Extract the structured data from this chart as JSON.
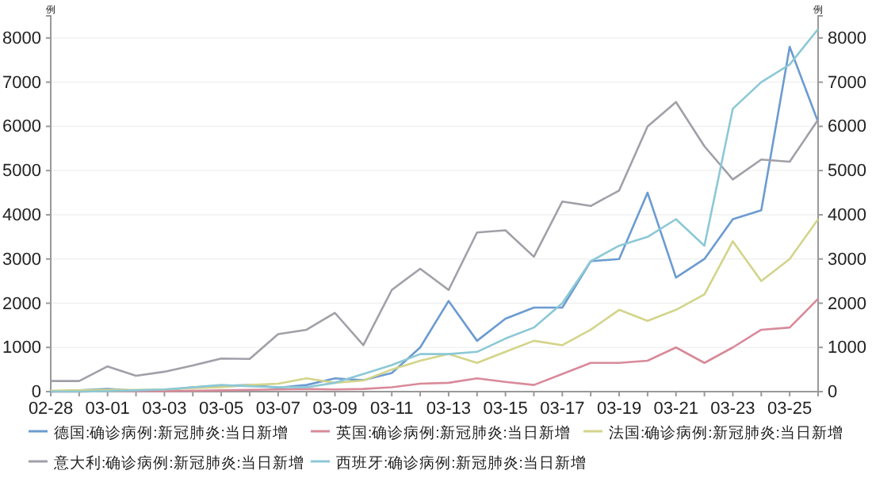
{
  "chart_data": {
    "type": "line",
    "categories": [
      "02-28",
      null,
      "03-01",
      null,
      "03-03",
      null,
      "03-05",
      null,
      "03-07",
      null,
      "03-09",
      null,
      "03-11",
      null,
      "03-13",
      null,
      "03-15",
      null,
      "03-17",
      null,
      "03-19",
      null,
      "03-21",
      null,
      "03-23",
      null,
      "03-25",
      null
    ],
    "ylabel": "例",
    "y2label": "例",
    "ylim": [
      0,
      8500
    ],
    "yticks": [
      0,
      1000,
      2000,
      3000,
      4000,
      5000,
      6000,
      7000,
      8000
    ],
    "y2lim": [
      0,
      8500
    ],
    "y2ticks": [
      0,
      1000,
      2000,
      3000,
      4000,
      5000,
      6000,
      7000,
      8000
    ],
    "grid": "y",
    "legend": "bottom",
    "marker": "none",
    "line_style": "solid",
    "series": [
      {
        "name": "德国:确诊病例:新冠肺炎:当日新增",
        "color": "#6b9bd1",
        "values": [
          0,
          30,
          60,
          20,
          30,
          100,
          130,
          150,
          90,
          150,
          300,
          260,
          420,
          1000,
          2050,
          1150,
          1650,
          1900,
          1900,
          2950,
          3000,
          4500,
          2580,
          3000,
          3900,
          4100,
          7800,
          6100
        ]
      },
      {
        "name": "英国:确诊病例:新冠肺炎:当日新增",
        "color": "#d88a9a",
        "values": [
          0,
          0,
          10,
          10,
          10,
          20,
          30,
          40,
          50,
          60,
          50,
          60,
          100,
          180,
          200,
          300,
          220,
          150,
          400,
          650,
          650,
          700,
          1000,
          650,
          1000,
          1400,
          1450,
          2100
        ]
      },
      {
        "name": "法国:确诊病例:新冠肺炎:当日新增",
        "color": "#d3d48a",
        "values": [
          20,
          30,
          40,
          40,
          50,
          80,
          100,
          150,
          180,
          300,
          200,
          250,
          500,
          700,
          850,
          650,
          900,
          1150,
          1050,
          1400,
          1850,
          1600,
          1850,
          2200,
          3400,
          2500,
          3000,
          3900
        ]
      },
      {
        "name": "意大利:确诊病例:新冠肺炎:当日新增",
        "color": "#a0a0a8",
        "values": [
          240,
          240,
          570,
          360,
          450,
          590,
          750,
          740,
          1300,
          1400,
          1780,
          1050,
          2300,
          2780,
          2300,
          3600,
          3650,
          3050,
          4300,
          4200,
          4550,
          6000,
          6550,
          5550,
          4800,
          5250,
          5200,
          6150
        ]
      },
      {
        "name": "西班牙:确诊病例:新冠肺炎:当日新增",
        "color": "#8cc8d6",
        "values": [
          0,
          0,
          10,
          30,
          50,
          100,
          150,
          120,
          100,
          100,
          200,
          400,
          600,
          850,
          850,
          900,
          1200,
          1450,
          2000,
          2950,
          3300,
          3500,
          3900,
          3300,
          6400,
          7000,
          7400,
          8200
        ]
      }
    ]
  }
}
